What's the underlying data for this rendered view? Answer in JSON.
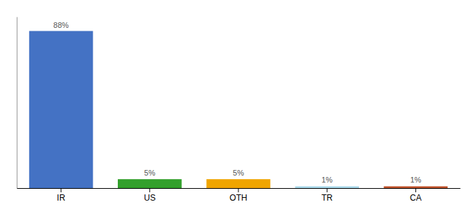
{
  "chart_data": {
    "type": "bar",
    "categories": [
      "IR",
      "US",
      "OTH",
      "TR",
      "CA"
    ],
    "values": [
      88,
      5,
      5,
      1,
      1
    ],
    "value_labels": [
      "88%",
      "5%",
      "5%",
      "1%",
      "1%"
    ],
    "colors": [
      "#4472c4",
      "#33a02c",
      "#f0a500",
      "#a8d8ea",
      "#c0522b"
    ],
    "ylim": [
      0,
      96
    ],
    "data_labels": true,
    "tick_labels": "x"
  }
}
